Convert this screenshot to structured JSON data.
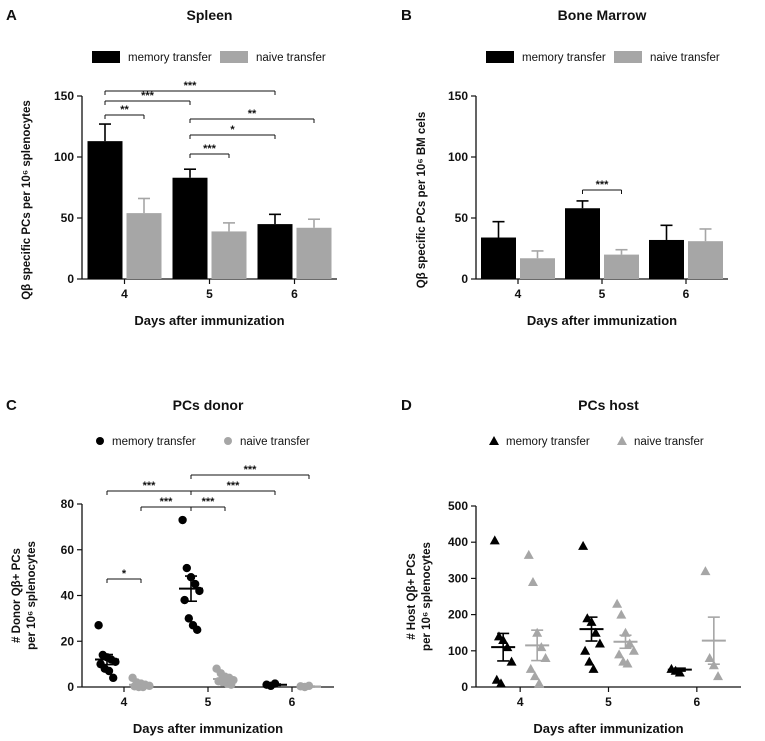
{
  "colors": {
    "memory": "#000000",
    "naive": "#a6a6a6",
    "axis": "#111111"
  },
  "chart_data": [
    {
      "panel": "A",
      "type": "bar",
      "title": "Spleen",
      "xlabel": "Days after immunization",
      "ylabel": "Qβ specific PCs per 10⁶ splenocytes",
      "ylim": [
        0,
        150
      ],
      "yticks": [
        0,
        50,
        100,
        150
      ],
      "categories": [
        "4",
        "5",
        "6"
      ],
      "legend": [
        "memory transfer",
        "naive transfer"
      ],
      "series": [
        {
          "name": "memory transfer",
          "values": [
            113,
            83,
            45
          ],
          "errors": [
            14,
            7,
            8
          ]
        },
        {
          "name": "naive transfer",
          "values": [
            54,
            39,
            42
          ],
          "errors": [
            12,
            7,
            7
          ]
        }
      ],
      "significance": [
        {
          "from": [
            0,
            0
          ],
          "to": [
            2,
            0
          ],
          "label": "***"
        },
        {
          "from": [
            0,
            0
          ],
          "to": [
            1,
            0
          ],
          "label": "***"
        },
        {
          "from": [
            0,
            0
          ],
          "to": [
            0,
            1
          ],
          "label": "**"
        },
        {
          "from": [
            1,
            0
          ],
          "to": [
            2,
            1
          ],
          "label": "**"
        },
        {
          "from": [
            1,
            0
          ],
          "to": [
            2,
            0
          ],
          "label": "*"
        },
        {
          "from": [
            1,
            0
          ],
          "to": [
            1,
            1
          ],
          "label": "***"
        }
      ]
    },
    {
      "panel": "B",
      "type": "bar",
      "title": "Bone Marrow",
      "xlabel": "Days after immunization",
      "ylabel": "Qβ specific PCs per 10⁶ BM cels",
      "ylim": [
        0,
        150
      ],
      "yticks": [
        0,
        50,
        100,
        150
      ],
      "categories": [
        "4",
        "5",
        "6"
      ],
      "legend": [
        "memory transfer",
        "naive transfer"
      ],
      "series": [
        {
          "name": "memory transfer",
          "values": [
            34,
            58,
            32
          ],
          "errors": [
            13,
            6,
            12
          ]
        },
        {
          "name": "naive transfer",
          "values": [
            17,
            20,
            31
          ],
          "errors": [
            6,
            4,
            10
          ]
        }
      ],
      "significance": [
        {
          "from": [
            1,
            0
          ],
          "to": [
            1,
            1
          ],
          "label": "***"
        }
      ]
    },
    {
      "panel": "C",
      "type": "scatter",
      "title": "PCs donor",
      "xlabel": "Days after immunization",
      "ylabel": [
        "# Donor Qβ+ PCs",
        "per 10⁶ splenocytes"
      ],
      "ylim": [
        0,
        80
      ],
      "yticks": [
        0,
        20,
        40,
        60,
        80
      ],
      "categories": [
        "4",
        "5",
        "6"
      ],
      "legend": [
        "memory transfer",
        "naive transfer"
      ],
      "marker": "circle",
      "series": [
        {
          "name": "memory transfer",
          "points": [
            [
              27,
              14,
              13,
              12,
              11,
              10,
              8,
              7,
              4
            ],
            [
              73,
              52,
              48,
              45,
              42,
              38,
              30,
              27,
              25
            ],
            [
              1,
              0.5,
              1.5
            ]
          ],
          "mean": [
            12,
            43,
            1
          ],
          "sem": [
            2.2,
            5.5,
            0.3
          ]
        },
        {
          "name": "naive transfer",
          "points": [
            [
              4,
              2,
              1.5,
              1,
              0.5,
              0.3,
              0,
              0
            ],
            [
              8,
              6,
              4.5,
              4,
              3,
              2.5,
              2,
              1.5,
              1
            ],
            [
              0.3,
              0,
              0.5
            ]
          ],
          "mean": [
            1,
            3.5,
            0.2
          ],
          "sem": [
            0.6,
            0.8,
            0.2
          ]
        }
      ],
      "significance": [
        {
          "from": [
            1,
            0
          ],
          "to": [
            2,
            1
          ],
          "label": "***"
        },
        {
          "from": [
            0,
            0
          ],
          "to": [
            1,
            0
          ],
          "label": "***"
        },
        {
          "from": [
            1,
            0
          ],
          "to": [
            2,
            0
          ],
          "label": "***"
        },
        {
          "from": [
            0,
            1
          ],
          "to": [
            1,
            0
          ],
          "label": "***"
        },
        {
          "from": [
            1,
            0
          ],
          "to": [
            1,
            1
          ],
          "label": "***"
        },
        {
          "from": [
            0,
            0
          ],
          "to": [
            0,
            1
          ],
          "label": "*"
        }
      ]
    },
    {
      "panel": "D",
      "type": "scatter",
      "title": "PCs host",
      "xlabel": "Days after immunization",
      "ylabel": [
        "# Host Qβ+ PCs",
        "per 10⁶ splenocytes"
      ],
      "ylim": [
        0,
        500
      ],
      "yticks": [
        0,
        100,
        200,
        300,
        400,
        500
      ],
      "categories": [
        "4",
        "5",
        "6"
      ],
      "legend": [
        "memory transfer",
        "naive transfer"
      ],
      "marker": "triangle",
      "series": [
        {
          "name": "memory transfer",
          "points": [
            [
              405,
              140,
              130,
              110,
              70,
              20,
              10
            ],
            [
              390,
              190,
              180,
              150,
              120,
              100,
              70,
              50
            ],
            [
              50,
              45,
              40
            ]
          ],
          "mean": [
            110,
            160,
            48
          ],
          "sem": [
            38,
            33,
            4
          ]
        },
        {
          "name": "naive transfer",
          "points": [
            [
              365,
              290,
              150,
              110,
              80,
              50,
              30,
              10
            ],
            [
              230,
              200,
              150,
              120,
              100,
              90,
              70,
              65
            ],
            [
              320,
              80,
              60,
              30
            ]
          ],
          "mean": [
            115,
            125,
            128
          ],
          "sem": [
            42,
            18,
            65
          ]
        }
      ],
      "significance": []
    }
  ]
}
